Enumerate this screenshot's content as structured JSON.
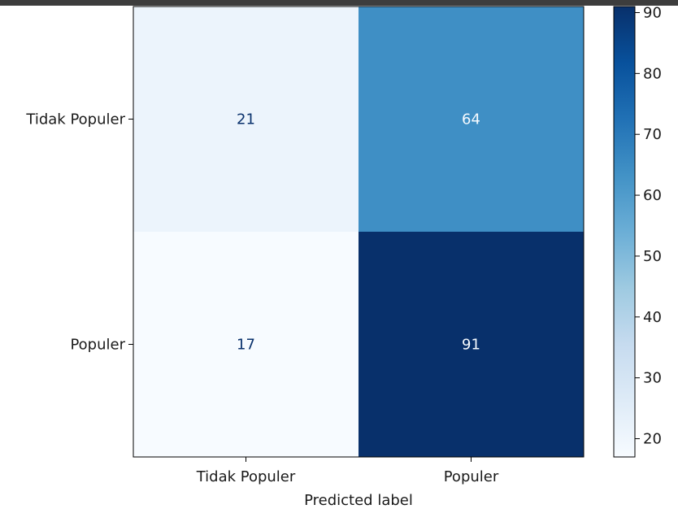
{
  "chart_data": {
    "type": "heatmap",
    "title": "",
    "xlabel": "Predicted label",
    "ylabel": "",
    "x_categories": [
      "Tidak Populer",
      "Populer"
    ],
    "y_categories": [
      "Tidak Populer",
      "Populer"
    ],
    "values": [
      [
        21,
        64
      ],
      [
        17,
        91
      ]
    ],
    "colormap": "Blues",
    "colorbar": {
      "range": [
        17,
        91
      ],
      "ticks": [
        20,
        30,
        40,
        50,
        60,
        70,
        80,
        90
      ]
    },
    "grid": false
  }
}
